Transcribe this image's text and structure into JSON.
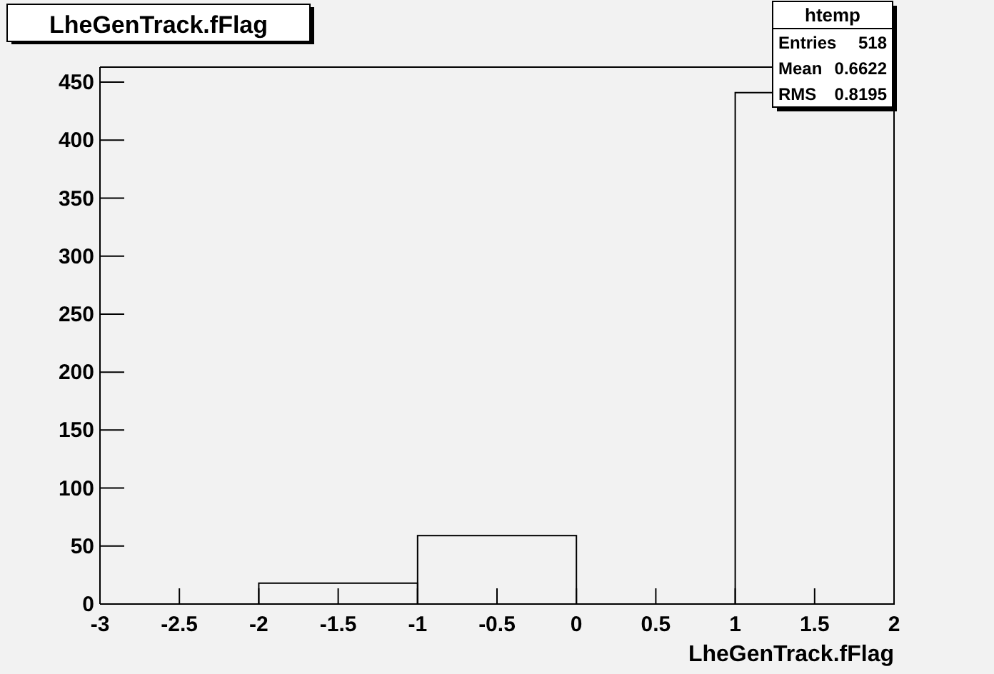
{
  "chart_data": {
    "type": "histogram",
    "title": "LheGenTrack.fFlag",
    "xlabel": "LheGenTrack.fFlag",
    "bins": [
      -3,
      -2,
      -1,
      0,
      1,
      2
    ],
    "values": [
      0,
      18,
      59,
      0,
      441
    ],
    "color": "#000000",
    "xlim": [
      -3,
      2
    ],
    "xticks": [
      -3,
      -2.5,
      -2,
      -1.5,
      -1,
      -0.5,
      0,
      0.5,
      1,
      1.5,
      2
    ],
    "ylim": [
      0,
      463
    ],
    "yticks": [
      0,
      50,
      100,
      150,
      200,
      250,
      300,
      350,
      400,
      450
    ],
    "grid": false,
    "annotations": [
      "htemp",
      "Entries",
      "518",
      "Mean",
      "0.6622",
      "RMS",
      "0.8195"
    ]
  }
}
